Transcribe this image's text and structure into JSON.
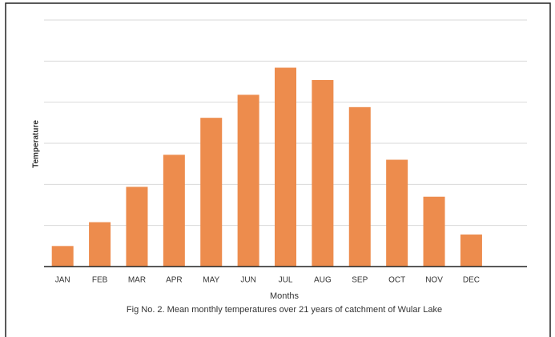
{
  "chart_data": {
    "type": "bar",
    "title": "Fig No.    2. Mean monthly temperatures over 21 years of catchment of Wular Lake",
    "x_label": "Months",
    "y_label": "Temperature",
    "categories": [
      "JAN",
      "FEB",
      "MAR",
      "APR",
      "MAY",
      "JUN",
      "JUL",
      "AUG",
      "SEP",
      "OCT",
      "NOV",
      "DEC"
    ],
    "values": [
      2.5,
      5.4,
      9.7,
      13.6,
      18.1,
      20.9,
      24.2,
      22.7,
      19.4,
      13.0,
      8.5,
      3.9
    ],
    "color": "#ed8c4d",
    "ylim": [
      0,
      30
    ],
    "yticks": [
      0,
      5,
      10,
      15,
      20,
      25,
      30
    ],
    "ytick_labels": false,
    "grid": true
  }
}
